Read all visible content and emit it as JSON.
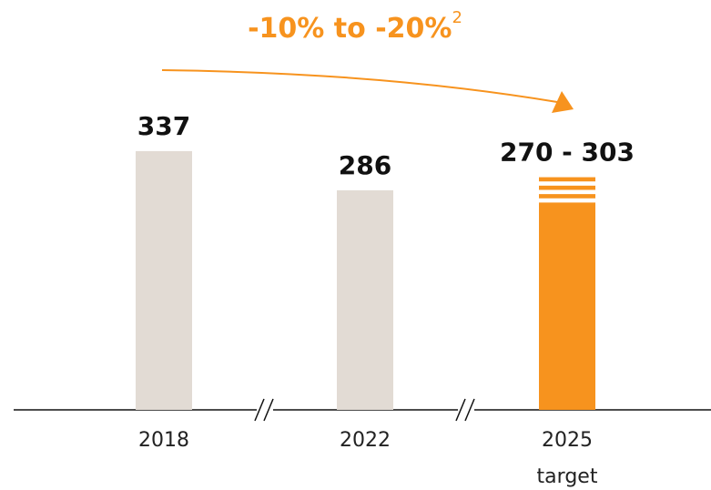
{
  "chart_data": {
    "type": "bar",
    "annotation": "-10% to -20%",
    "annotation_footnote": "2",
    "categories": [
      "2018",
      "2022",
      "2025 target"
    ],
    "values": [
      337,
      286,
      270
    ],
    "upper": [
      null,
      null,
      303
    ],
    "value_labels": [
      "337",
      "286",
      "270 - 303"
    ],
    "colors": [
      "#e2dbd4",
      "#e2dbd4",
      "#f7931e"
    ],
    "annotation_color": "#f7931e"
  }
}
